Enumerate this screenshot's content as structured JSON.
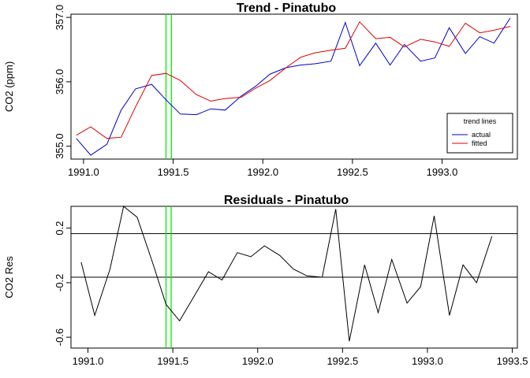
{
  "chart_data": [
    {
      "type": "line",
      "title": "Trend -  Pinatubo",
      "ylabel": "CO2 (ppm)",
      "xlabel": "",
      "xlim": [
        1990.93,
        1993.42
      ],
      "ylim": [
        354.8,
        357.05
      ],
      "x_ticks": [
        1991.0,
        1991.5,
        1992.0,
        1992.5,
        1993.0
      ],
      "x_tick_labels": [
        "1991.0",
        "1991.5",
        "1992.0",
        "1992.5",
        "1993.0"
      ],
      "y_ticks": [
        355.0,
        356.0,
        357.0
      ],
      "y_tick_labels": [
        "355.0",
        "356.0",
        "357.0"
      ],
      "vlines": [
        1991.46,
        1991.49
      ],
      "vline_color": "#00ee00",
      "legend": {
        "title": "trend lines",
        "placement": "bottom-right",
        "entries": [
          {
            "label": "actual",
            "color": "#0000cc"
          },
          {
            "label": "fitted",
            "color": "#dd0000"
          }
        ]
      },
      "x": [
        1990.96,
        1991.04,
        1991.13,
        1991.21,
        1991.29,
        1991.38,
        1991.46,
        1991.54,
        1991.63,
        1991.71,
        1991.79,
        1991.88,
        1991.96,
        1992.04,
        1992.13,
        1992.21,
        1992.29,
        1992.38,
        1992.46,
        1992.54,
        1992.63,
        1992.71,
        1992.79,
        1992.88,
        1992.96,
        1993.04,
        1993.13,
        1993.21,
        1993.29,
        1993.38
      ],
      "series": [
        {
          "name": "actual",
          "color": "#0000cc",
          "values": [
            355.12,
            354.86,
            355.03,
            355.56,
            355.89,
            355.96,
            355.72,
            355.5,
            355.49,
            355.58,
            355.56,
            355.78,
            355.93,
            356.12,
            356.22,
            356.26,
            356.28,
            356.32,
            356.92,
            356.25,
            356.6,
            356.26,
            356.58,
            356.32,
            356.37,
            356.84,
            356.44,
            356.7,
            356.6,
            356.99
          ]
        },
        {
          "name": "fitted",
          "color": "#dd0000",
          "values": [
            355.17,
            355.3,
            355.12,
            355.14,
            355.61,
            356.1,
            356.13,
            356.02,
            355.8,
            355.7,
            355.74,
            355.76,
            355.9,
            356.02,
            356.22,
            356.38,
            356.45,
            356.49,
            356.52,
            356.93,
            356.67,
            356.69,
            356.54,
            356.66,
            356.62,
            356.55,
            356.91,
            356.76,
            356.8,
            356.86
          ]
        }
      ]
    },
    {
      "type": "line",
      "title": "Residuals -  Pinatubo",
      "ylabel": "CO2 Res",
      "xlabel": "",
      "xlim": [
        1990.9,
        1993.53
      ],
      "ylim": [
        -0.68,
        0.36
      ],
      "x_ticks": [
        1991.0,
        1991.5,
        1992.0,
        1992.5,
        1993.0,
        1993.5
      ],
      "x_tick_labels": [
        "1991.0",
        "1991.5",
        "1992.0",
        "1992.5",
        "1993.0",
        "1993.5"
      ],
      "y_ticks": [
        -0.6,
        -0.2,
        0.2
      ],
      "y_tick_labels": [
        "-0.6",
        "-0.2",
        "0.2"
      ],
      "hlines": [
        0.16,
        -0.16
      ],
      "vlines": [
        1991.46,
        1991.49
      ],
      "vline_color": "#00ee00",
      "x": [
        1990.96,
        1991.04,
        1991.13,
        1991.21,
        1991.29,
        1991.38,
        1991.46,
        1991.54,
        1991.63,
        1991.71,
        1991.79,
        1991.88,
        1991.96,
        1992.04,
        1992.13,
        1992.21,
        1992.29,
        1992.38,
        1992.46,
        1992.54,
        1992.63,
        1992.71,
        1992.79,
        1992.88,
        1992.96,
        1993.04,
        1993.13,
        1993.21,
        1993.29,
        1993.38
      ],
      "series": [
        {
          "name": "",
          "color": "#000000",
          "values": [
            -0.05,
            -0.44,
            -0.1,
            0.36,
            0.28,
            -0.05,
            -0.36,
            -0.48,
            -0.29,
            -0.12,
            -0.18,
            0.02,
            -0.01,
            0.07,
            0.0,
            -0.1,
            -0.15,
            -0.16,
            0.34,
            -0.63,
            -0.07,
            -0.42,
            -0.03,
            -0.35,
            -0.23,
            0.29,
            -0.44,
            -0.07,
            -0.2,
            0.14
          ]
        }
      ]
    }
  ]
}
